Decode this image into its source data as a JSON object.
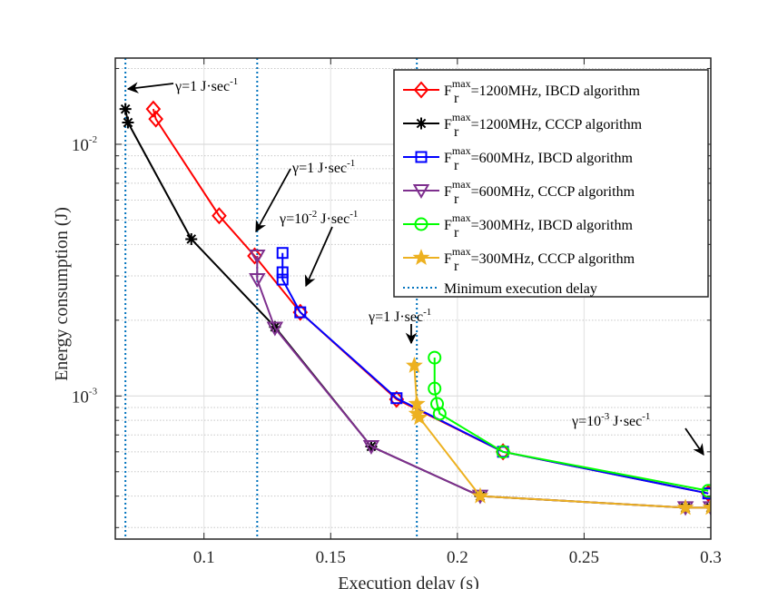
{
  "chart_data": {
    "type": "line",
    "title": "",
    "xlabel": "Execution delay (s)",
    "ylabel": "Energy consumption (J)",
    "xlim": [
      0.065,
      0.3
    ],
    "ylim": [
      0.00027,
      0.022
    ],
    "yscale": "log",
    "grid": true,
    "xticks": [
      0.1,
      0.15,
      0.2,
      0.25,
      0.3
    ],
    "xtick_labels": [
      "0.1",
      "0.15",
      "0.2",
      "0.25",
      "0.3"
    ],
    "yticks": [
      {
        "value": 0.01,
        "base": "10",
        "exp": "-2"
      },
      {
        "value": 0.001,
        "base": "10",
        "exp": "-3"
      }
    ],
    "legend_position": "top-right",
    "series": [
      {
        "name": "=1200MHz, IBCD algorithm",
        "fr": "F",
        "sub": "r",
        "sup": "max",
        "color": "#ff0000",
        "marker": "diamond",
        "x": [
          0.08,
          0.081,
          0.106,
          0.12,
          0.138,
          0.176,
          0.218,
          0.299
        ],
        "y": [
          0.0138,
          0.0126,
          0.0052,
          0.0036,
          0.00215,
          0.00097,
          0.0006,
          0.00041
        ]
      },
      {
        "name": "=1200MHz, CCCP algorithm",
        "fr": "F",
        "sub": "r",
        "sup": "max",
        "color": "#000000",
        "marker": "asterisk",
        "x": [
          0.069,
          0.07,
          0.095,
          0.128,
          0.166,
          0.209,
          0.29,
          0.3
        ],
        "y": [
          0.0138,
          0.0122,
          0.0042,
          0.00188,
          0.00063,
          0.0004,
          0.00036,
          0.00036
        ]
      },
      {
        "name": "=600MHz, IBCD algorithm",
        "fr": "F",
        "sub": "r",
        "sup": "max",
        "color": "#0000ff",
        "marker": "square",
        "x": [
          0.131,
          0.131,
          0.131,
          0.138,
          0.176,
          0.218,
          0.299
        ],
        "y": [
          0.0037,
          0.0031,
          0.0029,
          0.00215,
          0.00098,
          0.0006,
          0.00041
        ]
      },
      {
        "name": "=600MHz, CCCP algorithm",
        "fr": "F",
        "sub": "r",
        "sup": "max",
        "color": "#7e2f8e",
        "marker": "triangle-down",
        "x": [
          0.121,
          0.121,
          0.128,
          0.166,
          0.209,
          0.29,
          0.3
        ],
        "y": [
          0.0036,
          0.0029,
          0.00186,
          0.00063,
          0.0004,
          0.00036,
          0.00036
        ]
      },
      {
        "name": "=300MHz, IBCD algorithm",
        "fr": "F",
        "sub": "r",
        "sup": "max",
        "color": "#00ff00",
        "marker": "circle",
        "x": [
          0.191,
          0.191,
          0.192,
          0.193,
          0.218,
          0.299
        ],
        "y": [
          0.00142,
          0.00107,
          0.00093,
          0.00085,
          0.0006,
          0.00042
        ]
      },
      {
        "name": "=300MHz, CCCP algorithm",
        "fr": "F",
        "sub": "r",
        "sup": "max",
        "color": "#edb120",
        "marker": "pentagram",
        "x": [
          0.183,
          0.184,
          0.184,
          0.185,
          0.209,
          0.29,
          0.3
        ],
        "y": [
          0.00132,
          0.00093,
          0.00085,
          0.00082,
          0.0004,
          0.00036,
          0.00036
        ]
      }
    ],
    "reference_lines": {
      "name": "Minimum execution delay",
      "color": "#0072bd",
      "x": [
        0.069,
        0.121,
        0.184
      ]
    },
    "annotations": [
      {
        "pre": "γ=1 J·sec",
        "exp": "-1",
        "at": [
          0.07,
          0.0143
        ],
        "text_at": [
          0.08,
          0.017
        ]
      },
      {
        "pre": "γ=1 J·sec",
        "exp": "-1",
        "at": [
          0.121,
          0.0037
        ],
        "text_at": [
          0.13,
          0.0058
        ]
      },
      {
        "pre": "γ=10",
        "exp": "-2",
        "post": " J·sec",
        "exp2": "-1",
        "at": [
          0.139,
          0.00215
        ],
        "text_at": [
          0.153,
          0.0041
        ]
      },
      {
        "pre": "γ=1 J·sec",
        "exp": "-1",
        "at": [
          0.183,
          0.00135
        ],
        "text_at": [
          0.175,
          0.0018
        ]
      },
      {
        "pre": "γ=10",
        "exp": "-3",
        "post": " J·sec",
        "exp2": "-1",
        "at": [
          0.299,
          0.00042
        ],
        "text_at": [
          0.24,
          0.00055
        ]
      }
    ]
  }
}
